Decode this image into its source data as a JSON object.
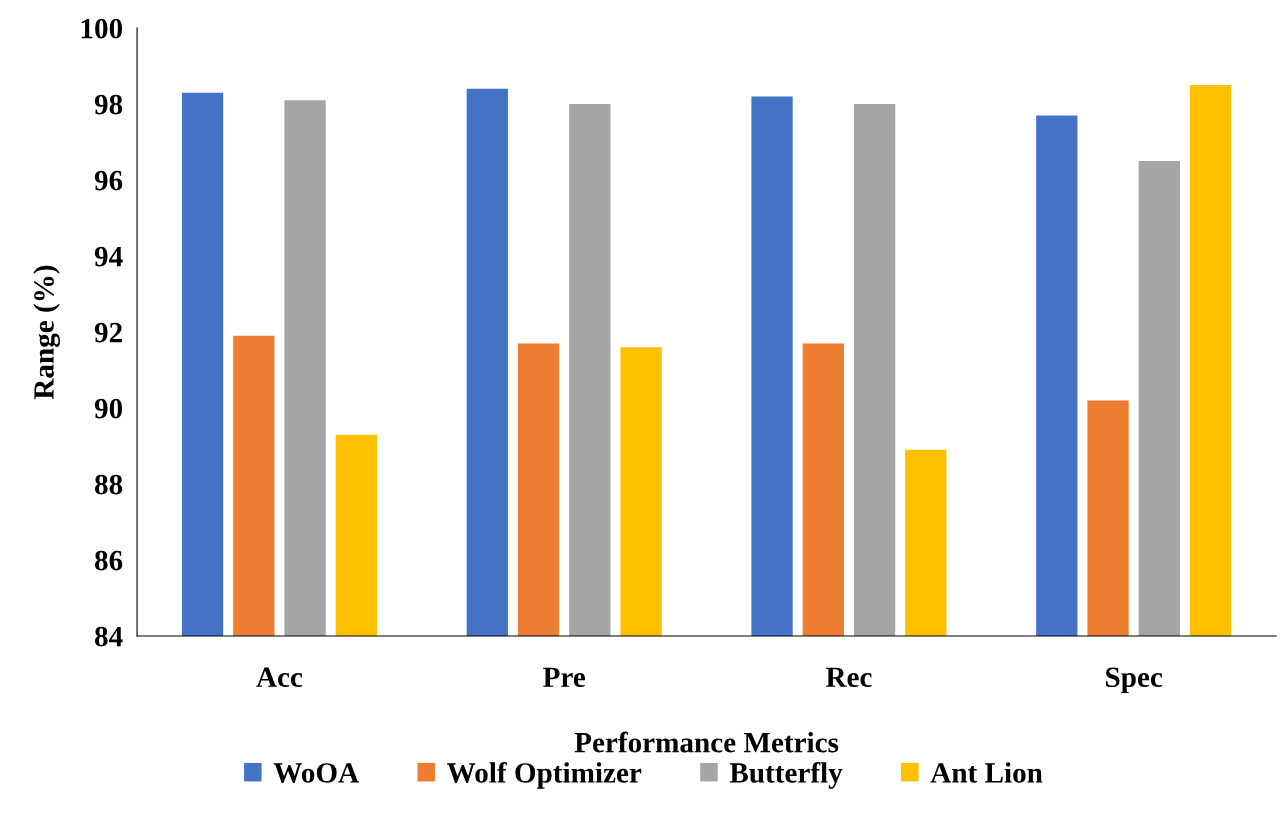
{
  "chart_data": {
    "type": "bar",
    "xlabel": "Performance Metrics",
    "ylabel": "Range (%)",
    "categories": [
      "Acc",
      "Pre",
      "Rec",
      "Spec"
    ],
    "series": [
      {
        "name": "WoOA",
        "color": "#4472c4",
        "values": [
          98.3,
          98.4,
          98.2,
          97.7
        ]
      },
      {
        "name": "Wolf Optimizer",
        "color": "#ed7d31",
        "values": [
          91.9,
          91.7,
          91.7,
          90.2
        ]
      },
      {
        "name": "Butterfly",
        "color": "#a5a5a5",
        "values": [
          98.1,
          98.0,
          98.0,
          96.5
        ]
      },
      {
        "name": "Ant Lion",
        "color": "#ffc000",
        "values": [
          89.3,
          91.6,
          88.9,
          98.5
        ]
      }
    ],
    "ylim": [
      84,
      100
    ],
    "yticks": [
      84,
      86,
      88,
      90,
      92,
      94,
      96,
      98,
      100
    ],
    "grid": false,
    "legend": "bottom"
  }
}
